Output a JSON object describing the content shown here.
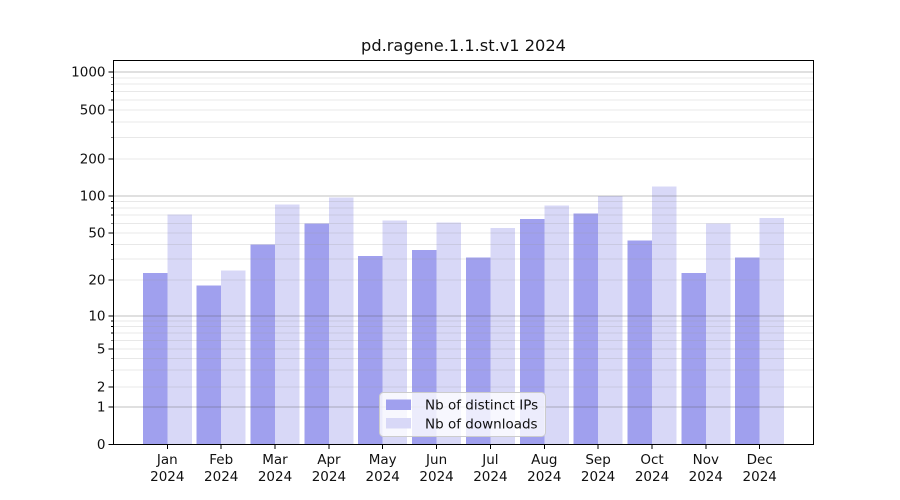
{
  "chart_data": {
    "type": "bar",
    "title": "pd.ragene.1.1.st.v1 2024",
    "categories": [
      "Jan",
      "Feb",
      "Mar",
      "Apr",
      "May",
      "Jun",
      "Jul",
      "Aug",
      "Sep",
      "Oct",
      "Nov",
      "Dec"
    ],
    "year": "2024",
    "series": [
      {
        "name": "Nb of distinct IPs",
        "color": "#a0a0ee",
        "values": [
          23,
          18,
          40,
          60,
          32,
          36,
          31,
          65,
          72,
          43,
          23,
          31
        ]
      },
      {
        "name": "Nb of downloads",
        "color": "#d8d8f7",
        "values": [
          71,
          24,
          85,
          97,
          63,
          61,
          55,
          84,
          100,
          120,
          60,
          66
        ]
      }
    ],
    "yscale": "symlog",
    "ylim": [
      0,
      1100
    ],
    "yticks": [
      0,
      1,
      2,
      5,
      10,
      20,
      50,
      100,
      200,
      500,
      1000
    ],
    "ytick_labels": [
      "0",
      "1",
      "2",
      "5",
      "10",
      "20",
      "50",
      "100",
      "200",
      "500",
      "1000"
    ],
    "grid": true,
    "legend_position": "lower center"
  },
  "colors": {
    "axis": "#000000",
    "major_grid_rgba": "rgba(90,90,90,0.38)",
    "minor_grid_rgba": "rgba(150,150,150,0.22)",
    "legend_border": "#cccccc",
    "legend_bg": "rgba(255,255,255,0.8)"
  }
}
